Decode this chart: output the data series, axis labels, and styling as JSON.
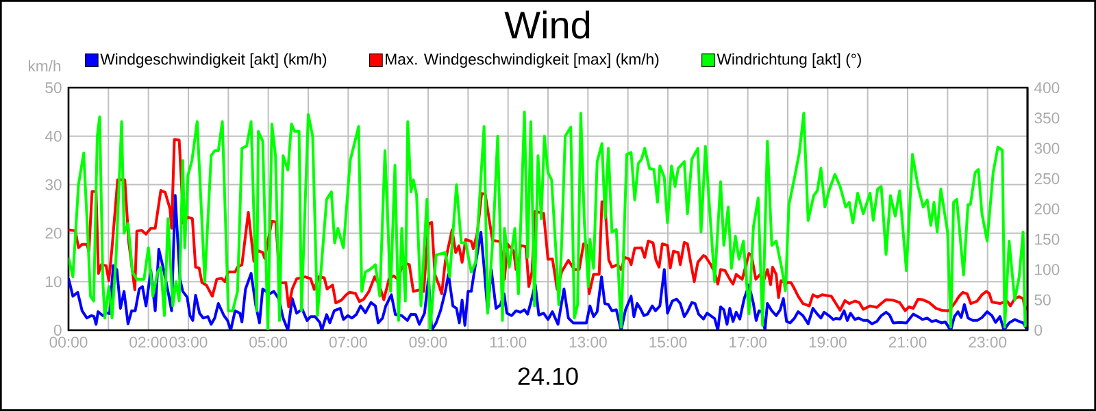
{
  "chart_data": {
    "type": "line",
    "title": "Wind",
    "xlabel": "24.10",
    "ylabel": "km/h",
    "xlim": [
      0,
      24
    ],
    "ylim": [
      0,
      50
    ],
    "y2lim": [
      0,
      400
    ],
    "xticks": [
      {
        "value": 0,
        "label": "00:00"
      },
      {
        "value": 1,
        "label": null
      },
      {
        "value": 2,
        "label": "02:00"
      },
      {
        "value": 3,
        "label": "03:00"
      },
      {
        "value": 4,
        "label": null
      },
      {
        "value": 5,
        "label": "05:00"
      },
      {
        "value": 6,
        "label": null
      },
      {
        "value": 7,
        "label": "07:00"
      },
      {
        "value": 8,
        "label": null
      },
      {
        "value": 9,
        "label": "09:00"
      },
      {
        "value": 10,
        "label": null
      },
      {
        "value": 11,
        "label": "11:00"
      },
      {
        "value": 12,
        "label": null
      },
      {
        "value": 13,
        "label": "13:00"
      },
      {
        "value": 14,
        "label": null
      },
      {
        "value": 15,
        "label": "15:00"
      },
      {
        "value": 16,
        "label": null
      },
      {
        "value": 17,
        "label": "17:00"
      },
      {
        "value": 18,
        "label": null
      },
      {
        "value": 19,
        "label": "19:00"
      },
      {
        "value": 20,
        "label": null
      },
      {
        "value": 21,
        "label": "21:00"
      },
      {
        "value": 22,
        "label": null
      },
      {
        "value": 23,
        "label": "23:00"
      },
      {
        "value": 24,
        "label": null
      }
    ],
    "yticks": [
      0,
      10,
      20,
      30,
      40,
      50
    ],
    "y2ticks": [
      0,
      50,
      100,
      150,
      200,
      250,
      300,
      350,
      400
    ],
    "grid": true,
    "legend": "top",
    "marker": "none",
    "line_style": "solid",
    "series": [
      {
        "name": "Windgeschwindigkeit [akt] (km/h)",
        "color": "#0000ff",
        "x": [
          0,
          0.11,
          0.23,
          0.34,
          0.46,
          0.57,
          0.64,
          0.69,
          0.74,
          0.86,
          0.94,
          1.03,
          1.12,
          1.21,
          1.3,
          1.39,
          1.49,
          1.58,
          1.67,
          1.77,
          1.85,
          1.94,
          2.06,
          2.17,
          2.26,
          2.38,
          2.49,
          2.58,
          2.67,
          2.79,
          2.86,
          2.97,
          3.04,
          3.11,
          3.18,
          3.28,
          3.37,
          3.49,
          3.57,
          3.66,
          3.75,
          3.89,
          3.98,
          4.06,
          4.17,
          4.29,
          4.34,
          4.43,
          4.57,
          4.69,
          4.78,
          4.86,
          5.03,
          5.14,
          5.26,
          5.37,
          5.49,
          5.6,
          5.71,
          5.85,
          5.97,
          6.06,
          6.17,
          6.29,
          6.34,
          6.46,
          6.54,
          6.65,
          6.8,
          6.88,
          6.99,
          7.09,
          7.2,
          7.31,
          7.43,
          7.57,
          7.68,
          7.75,
          7.86,
          7.94,
          8.08,
          8.18,
          8.34,
          8.48,
          8.57,
          8.69,
          8.78,
          8.91,
          9.01,
          9.09,
          9.2,
          9.31,
          9.43,
          9.51,
          9.62,
          9.71,
          9.78,
          9.85,
          9.92,
          10,
          10.08,
          10.15,
          10.23,
          10.32,
          10.4,
          10.49,
          10.58,
          10.7,
          10.81,
          10.9,
          10.97,
          11.09,
          11.2,
          11.31,
          11.41,
          11.49,
          11.57,
          11.68,
          11.77,
          11.89,
          12,
          12.11,
          12.25,
          12.4,
          12.51,
          12.63,
          12.74,
          12.86,
          12.96,
          13.05,
          13.14,
          13.23,
          13.34,
          13.42,
          13.51,
          13.6,
          13.71,
          13.83,
          13.94,
          14.08,
          14.15,
          14.23,
          14.31,
          14.4,
          14.49,
          14.61,
          14.69,
          14.8,
          14.91,
          14.99,
          15.11,
          15.22,
          15.31,
          15.41,
          15.49,
          15.6,
          15.68,
          15.77,
          15.89,
          15.98,
          16.07,
          16.17,
          16.25,
          16.32,
          16.4,
          16.48,
          16.55,
          16.63,
          16.71,
          16.8,
          16.91,
          17.03,
          17.14,
          17.21,
          17.28,
          17.35,
          17.43,
          17.49,
          17.6,
          17.71,
          17.81,
          17.89,
          17.97,
          18.06,
          18.17,
          18.26,
          18.38,
          18.51,
          18.63,
          18.74,
          18.83,
          18.91,
          19.03,
          19.14,
          19.2,
          19.31,
          19.41,
          19.49,
          19.57,
          19.68,
          19.77,
          19.89,
          20,
          20.11,
          20.23,
          20.34,
          20.46,
          20.55,
          20.64,
          20.8,
          20.97,
          21.14,
          21.26,
          21.37,
          21.49,
          21.6,
          21.71,
          21.85,
          21.94,
          22.08,
          22.17,
          22.26,
          22.34,
          22.42,
          22.51,
          22.63,
          22.74,
          22.86,
          22.99,
          23.11,
          23.2,
          23.31,
          23.41,
          23.54,
          23.68,
          23.79,
          23.89,
          24
        ],
        "values": [
          10.7,
          7,
          7.8,
          4,
          2.5,
          3,
          2.8,
          1.2,
          3.8,
          3,
          3.6,
          3.4,
          13.3,
          12.5,
          4.5,
          8,
          1.3,
          4,
          4,
          8.5,
          9,
          5,
          12.3,
          4,
          16.7,
          12.5,
          8,
          4,
          27.8,
          10.5,
          8,
          6.8,
          3,
          2,
          7.2,
          3.5,
          2.5,
          2.8,
          1.2,
          2.5,
          5.5,
          3,
          2,
          0,
          4,
          3.5,
          1.7,
          8.5,
          11.7,
          5,
          1.5,
          8.5,
          7.5,
          8,
          6.5,
          2.5,
          0,
          6.5,
          3.5,
          4.3,
          2,
          2.8,
          2.8,
          1.6,
          0,
          3.2,
          1.5,
          4,
          4.5,
          2.2,
          3,
          2.5,
          3.2,
          5,
          3.6,
          5.7,
          5,
          1.5,
          2.5,
          5,
          7.3,
          3.2,
          3,
          2,
          3.3,
          3.2,
          1.2,
          3.5,
          10.8,
          0,
          1.5,
          4,
          8,
          11.5,
          5,
          4.5,
          1.5,
          6.2,
          1,
          8,
          8,
          11.8,
          15.8,
          20.2,
          13,
          4,
          12.5,
          4.5,
          5.2,
          7.5,
          3.5,
          3,
          4,
          3.7,
          4.2,
          3.3,
          5.7,
          9.5,
          3.1,
          3.5,
          2.2,
          3.8,
          1.2,
          8.5,
          2.5,
          1.5,
          1.5,
          1.5,
          1.5,
          5,
          2.8,
          3.8,
          11,
          5.5,
          5.3,
          4,
          4.2,
          0,
          4.2,
          7,
          2.8,
          5.5,
          4.5,
          3,
          3.3,
          5,
          4,
          5,
          12.5,
          3.5,
          6,
          6.4,
          5.5,
          2.8,
          3.8,
          5.7,
          5.5,
          3.3,
          2.3,
          3.5,
          3,
          2.4,
          0,
          4.8,
          4.2,
          1.2,
          4.5,
          1.8,
          3.7,
          2.3,
          6.5,
          9.3,
          5.5,
          2,
          4,
          3.8,
          0,
          5.5,
          4,
          3,
          4.2,
          6.5,
          1.8,
          1.5,
          2.5,
          3.8,
          3,
          1.3,
          4.5,
          3.3,
          2.5,
          3.7,
          3,
          2.2,
          2.4,
          2.3,
          4,
          2,
          3.5,
          2.2,
          2.5,
          2,
          2,
          1.3,
          1.8,
          3,
          3.7,
          3.1,
          1.5,
          1.6,
          1.5,
          3.3,
          2.8,
          2.2,
          2.5,
          1.8,
          2,
          1.5,
          1.7,
          0,
          2.8,
          3.8,
          2.6,
          5.3,
          2.5,
          2,
          2,
          2.6,
          3.8,
          3,
          1.6,
          2.8,
          0,
          1.5,
          2.2,
          1.8,
          1.5,
          0
        ]
      },
      {
        "name": "Max. Windgeschwindigkeit [max] (km/h)",
        "color": "#ff0000",
        "x": [
          0,
          0.17,
          0.25,
          0.34,
          0.46,
          0.51,
          0.59,
          0.69,
          0.75,
          0.82,
          0.94,
          1.01,
          1.09,
          1.23,
          1.41,
          1.51,
          1.66,
          1.71,
          1.83,
          1.94,
          2.06,
          2.17,
          2.31,
          2.42,
          2.54,
          2.58,
          2.65,
          2.77,
          2.88,
          2.97,
          3.1,
          3.18,
          3.27,
          3.34,
          3.45,
          3.6,
          3.71,
          3.83,
          3.91,
          4,
          4.17,
          4.23,
          4.34,
          4.5,
          4.64,
          4.74,
          4.86,
          4.91,
          5.09,
          5.19,
          5.29,
          5.44,
          5.51,
          5.6,
          5.71,
          5.92,
          6.06,
          6.15,
          6.26,
          6.4,
          6.47,
          6.61,
          6.69,
          6.83,
          6.95,
          7.03,
          7.18,
          7.28,
          7.39,
          7.52,
          7.66,
          7.77,
          7.89,
          8.02,
          8.14,
          8.25,
          8.32,
          8.43,
          8.53,
          8.63,
          8.78,
          8.89,
          9.01,
          9.09,
          9.17,
          9.26,
          9.34,
          9.43,
          9.6,
          9.69,
          9.77,
          9.85,
          9.94,
          10.08,
          10.13,
          10.23,
          10.34,
          10.43,
          10.61,
          10.8,
          10.91,
          10.99,
          11.14,
          11.2,
          11.26,
          11.31,
          11.45,
          11.52,
          11.6,
          11.68,
          11.89,
          12,
          12.11,
          12.23,
          12.34,
          12.51,
          12.66,
          12.78,
          12.89,
          12.96,
          13.03,
          13.14,
          13.28,
          13.35,
          13.42,
          13.52,
          13.6,
          13.74,
          13.83,
          13.92,
          14.03,
          14.08,
          14.17,
          14.34,
          14.42,
          14.51,
          14.63,
          14.7,
          14.78,
          14.86,
          14.99,
          15.06,
          15.14,
          15.26,
          15.31,
          15.41,
          15.49,
          15.57,
          15.66,
          15.75,
          15.89,
          15.94,
          16.06,
          16.17,
          16.25,
          16.32,
          16.43,
          16.55,
          16.63,
          16.71,
          16.86,
          17.03,
          17.09,
          17.2,
          17.31,
          17.39,
          17.49,
          17.57,
          17.62,
          17.71,
          17.77,
          17.83,
          17.94,
          18.08,
          18.17,
          18.26,
          18.38,
          18.54,
          18.63,
          18.74,
          18.86,
          19.09,
          19.22,
          19.31,
          19.43,
          19.54,
          19.68,
          19.79,
          19.89,
          20.06,
          20.23,
          20.34,
          20.46,
          20.63,
          20.8,
          20.94,
          21.03,
          21.14,
          21.26,
          21.37,
          21.54,
          21.71,
          21.85,
          22.03,
          22.17,
          22.29,
          22.38,
          22.49,
          22.58,
          22.74,
          22.86,
          22.97,
          23.04,
          23.11,
          23.31,
          23.49,
          23.57,
          23.68,
          23.79,
          23.89,
          23.94,
          24
        ],
        "values": [
          20.7,
          20.5,
          17,
          17.7,
          17.7,
          16.3,
          28.6,
          28.6,
          11.7,
          13.5,
          13.3,
          10.2,
          17,
          31,
          31,
          18,
          8.3,
          20.4,
          20.6,
          19.8,
          21,
          21,
          28.8,
          28.4,
          25,
          21,
          39.3,
          39.2,
          22,
          23.3,
          23,
          13,
          12.8,
          9.8,
          9.3,
          7,
          10.5,
          10.7,
          10,
          12,
          12,
          13,
          13.5,
          24.3,
          14.2,
          16.4,
          16,
          14.8,
          22.5,
          22.3,
          9.7,
          9.8,
          4.8,
          8.5,
          10.6,
          11,
          10.6,
          8.4,
          11,
          10.8,
          8.5,
          9.3,
          5.6,
          6.2,
          7.3,
          7.8,
          7.6,
          5.9,
          6.4,
          8,
          11,
          9.5,
          6.3,
          10.5,
          11.2,
          10.4,
          12.5,
          13.8,
          13.5,
          8,
          8.3,
          8,
          22,
          22.2,
          11.5,
          9.5,
          7.5,
          14.2,
          20.7,
          16,
          17.4,
          14,
          18.7,
          18.3,
          16.8,
          20,
          28.2,
          28,
          18.5,
          18.3,
          10.5,
          17.7,
          16.3,
          12.5,
          12.3,
          17.5,
          17.2,
          9,
          12,
          24.5,
          24.1,
          14.6,
          14.7,
          8.4,
          12,
          14.4,
          12.5,
          12.5,
          17.8,
          17.6,
          7.5,
          11.5,
          11.5,
          26.5,
          26.5,
          14.5,
          13,
          13.5,
          12.5,
          15,
          14.7,
          13.5,
          16.9,
          17,
          15,
          18.4,
          18,
          14.5,
          13,
          17.8,
          17.5,
          12.8,
          16.3,
          16,
          13.5,
          18.1,
          17.8,
          14,
          10,
          14,
          15.4,
          15.2,
          13.7,
          12,
          9.5,
          12.5,
          12.3,
          10.5,
          9.5,
          11.5,
          10.5,
          15.8,
          15.5,
          10.5,
          11.5,
          10,
          12.5,
          9.4,
          13,
          11.5,
          6.7,
          10.2,
          9.8,
          9.8,
          8.5,
          7,
          5.5,
          5,
          7.3,
          6.8,
          7.3,
          7,
          5.3,
          4.1,
          6.1,
          5.5,
          6,
          5.7,
          4.3,
          5,
          4.7,
          5.5,
          6.3,
          6.2,
          5.7,
          4,
          4.8,
          4.5,
          6.4,
          6.3,
          5.7,
          4.5,
          4.1,
          4,
          5.5,
          7,
          7.8,
          7.5,
          5.5,
          6,
          7.3,
          8,
          7.6,
          5.8,
          5.5,
          6,
          5,
          6.5,
          6.9,
          6.5,
          4.2,
          4.8
        ]
      },
      {
        "name": "Windrichtung [akt] (°)",
        "color": "#00ff00",
        "axis": "y2",
        "x": [
          0,
          0.11,
          0.25,
          0.38,
          0.48,
          0.55,
          0.63,
          0.72,
          0.78,
          0.86,
          0.91,
          1.01,
          1.09,
          1.19,
          1.33,
          1.39,
          1.49,
          1.6,
          1.71,
          1.89,
          2,
          2.11,
          2.23,
          2.31,
          2.4,
          2.49,
          2.61,
          2.69,
          2.77,
          2.86,
          2.91,
          2.99,
          3.09,
          3.22,
          3.41,
          3.57,
          3.66,
          3.75,
          3.85,
          4,
          4.11,
          4.23,
          4.34,
          4.46,
          4.57,
          4.71,
          4.75,
          4.86,
          4.99,
          5.09,
          5.18,
          5.28,
          5.37,
          5.49,
          5.58,
          5.66,
          5.77,
          5.83,
          6,
          6.11,
          6.23,
          6.46,
          6.58,
          6.66,
          6.74,
          6.88,
          7.05,
          7.26,
          7.34,
          7.43,
          7.54,
          7.68,
          7.79,
          7.92,
          8.06,
          8.17,
          8.26,
          8.34,
          8.43,
          8.49,
          8.57,
          8.63,
          8.71,
          8.82,
          8.97,
          9.05,
          9.2,
          9.43,
          9.54,
          9.71,
          9.83,
          9.94,
          10.08,
          10.19,
          10.4,
          10.49,
          10.63,
          10.74,
          10.86,
          10.91,
          11.03,
          11.17,
          11.26,
          11.41,
          11.49,
          11.57,
          11.66,
          11.75,
          11.83,
          11.91,
          12,
          12.09,
          12.21,
          12.27,
          12.34,
          12.43,
          12.57,
          12.66,
          12.74,
          12.82,
          12.91,
          13.01,
          13.05,
          13.14,
          13.23,
          13.35,
          13.43,
          13.51,
          13.6,
          13.71,
          13.83,
          13.97,
          14.08,
          14.17,
          14.26,
          14.34,
          14.42,
          14.54,
          14.65,
          14.74,
          14.8,
          14.91,
          14.99,
          15.09,
          15.18,
          15.26,
          15.41,
          15.49,
          15.6,
          15.75,
          15.83,
          15.94,
          16.06,
          16.17,
          16.32,
          16.4,
          16.51,
          16.59,
          16.69,
          16.78,
          16.89,
          17.03,
          17.14,
          17.26,
          17.37,
          17.49,
          17.6,
          17.71,
          17.85,
          17.94,
          18.03,
          18.17,
          18.29,
          18.4,
          18.51,
          18.65,
          18.74,
          18.83,
          18.93,
          19.03,
          19.18,
          19.31,
          19.45,
          19.54,
          19.63,
          19.75,
          19.89,
          20.06,
          20.14,
          20.25,
          20.34,
          20.46,
          20.57,
          20.69,
          20.8,
          20.97,
          21.12,
          21.26,
          21.39,
          21.49,
          21.58,
          21.66,
          21.74,
          21.83,
          22,
          22.08,
          22.15,
          22.23,
          22.4,
          22.51,
          22.57,
          22.69,
          22.77,
          22.86,
          22.99,
          23.14,
          23.26,
          23.37,
          23.43,
          23.54,
          23.68,
          23.79,
          23.89,
          23.94
        ],
        "values": [
          120,
          88,
          240,
          292,
          160,
          56,
          48,
          320,
          352,
          80,
          20,
          72,
          20,
          120,
          344,
          160,
          176,
          96,
          84,
          84,
          136,
          56,
          96,
          104,
          24,
          184,
          40,
          80,
          48,
          280,
          136,
          256,
          280,
          344,
          80,
          288,
          296,
          296,
          344,
          32,
          32,
          64,
          300,
          304,
          344,
          32,
          328,
          312,
          0,
          340,
          288,
          16,
          288,
          264,
          340,
          328,
          328,
          32,
          356,
          320,
          24,
          216,
          228,
          144,
          168,
          136,
          280,
          336,
          64,
          96,
          100,
          108,
          56,
          296,
          64,
          272,
          16,
          168,
          48,
          344,
          228,
          248,
          224,
          40,
          216,
          0,
          124,
          128,
          88,
          240,
          144,
          144,
          96,
          112,
          336,
          28,
          160,
          320,
          16,
          168,
          104,
          168,
          60,
          360,
          120,
          344,
          40,
          288,
          184,
          320,
          260,
          248,
          117,
          42,
          140,
          320,
          335,
          20,
          42,
          358,
          177,
          72,
          150,
          102,
          278,
          308,
          185,
          300,
          162,
          166,
          5,
          290,
          293,
          215,
          275,
          282,
          300,
          267,
          265,
          211,
          271,
          252,
          177,
          271,
          237,
          267,
          278,
          192,
          282,
          300,
          162,
          303,
          185,
          80,
          245,
          140,
          203,
          102,
          155,
          117,
          147,
          27,
          170,
          218,
          8,
          312,
          140,
          147,
          102,
          65,
          207,
          252,
          293,
          358,
          181,
          222,
          230,
          267,
          203,
          230,
          257,
          237,
          203,
          211,
          177,
          226,
          192,
          226,
          181,
          233,
          237,
          125,
          222,
          188,
          230,
          98,
          290,
          237,
          203,
          215,
          173,
          211,
          162,
          233,
          162,
          5,
          211,
          216,
          91,
          207,
          207,
          260,
          265,
          192,
          147,
          260,
          302,
          297,
          5,
          147,
          50,
          87,
          162,
          5
        ]
      }
    ]
  }
}
